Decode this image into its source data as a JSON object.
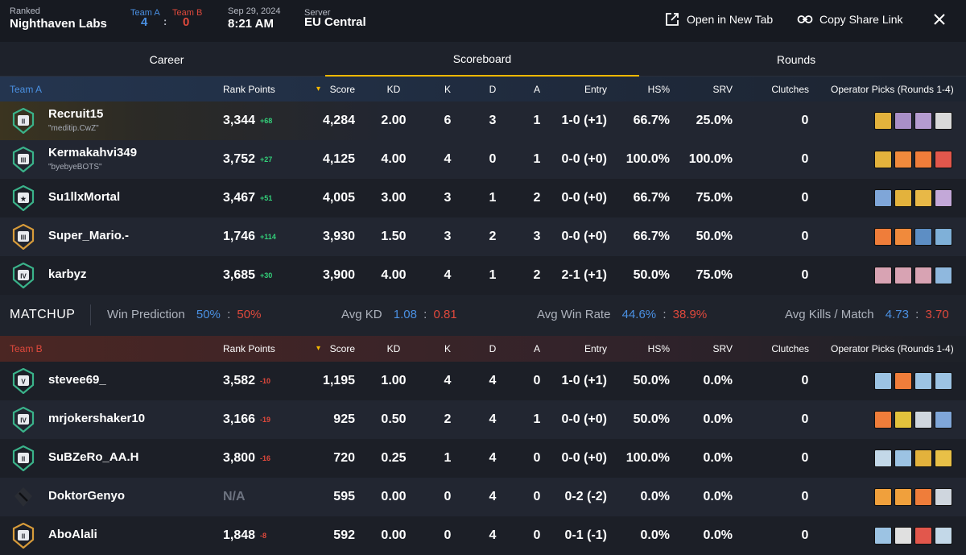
{
  "header": {
    "mode": "Ranked",
    "map": "Nighthaven Labs",
    "team_a_label": "Team A",
    "team_b_label": "Team B",
    "team_a_score": "4",
    "separator": ":",
    "team_b_score": "0",
    "date": "Sep 29, 2024",
    "time": "8:21 AM",
    "server_label": "Server",
    "server": "EU Central",
    "open_new_tab": "Open in New Tab",
    "copy_share_link": "Copy Share Link"
  },
  "tabs": [
    {
      "label": "Career",
      "active": false
    },
    {
      "label": "Scoreboard",
      "active": true
    },
    {
      "label": "Rounds",
      "active": false
    }
  ],
  "columns": {
    "rank_points": "Rank Points",
    "sort_indicator": "▾",
    "score": "Score",
    "kd": "KD",
    "k": "K",
    "d": "D",
    "a": "A",
    "entry": "Entry",
    "hs": "HS%",
    "srv": "SRV",
    "clutches": "Clutches",
    "operators": "Operator Picks (Rounds 1-4)"
  },
  "team_a": {
    "name": "Team A",
    "players": [
      {
        "name": "Recruit15",
        "sub": "\"meditip.CwZ\"",
        "rank": "II",
        "rank_color": "#3ab38a",
        "rp": "3,344",
        "delta": "+68",
        "score": "4,284",
        "kd": "2.00",
        "k": "6",
        "d": "3",
        "a": "1",
        "entry": "1-0 (+1)",
        "hs": "66.7%",
        "srv": "25.0%",
        "clutches": "0",
        "ops": [
          {
            "icon": "op-yellow",
            "color": "#e3b23c"
          },
          {
            "icon": "op-purple",
            "color": "#a98fc7"
          },
          {
            "icon": "op-purple",
            "color": "#b59cd0"
          },
          {
            "icon": "op-grey",
            "color": "#d9d9d9"
          }
        ]
      },
      {
        "name": "Kermakahvi349",
        "sub": "\"byebyeBOTS\"",
        "rank": "III",
        "rank_color": "#3ab38a",
        "rp": "3,752",
        "delta": "+27",
        "score": "4,125",
        "kd": "4.00",
        "k": "4",
        "d": "0",
        "a": "1",
        "entry": "0-0 (+0)",
        "hs": "100.0%",
        "srv": "100.0%",
        "clutches": "0",
        "ops": [
          {
            "icon": "op-yellow",
            "color": "#e3b23c"
          },
          {
            "icon": "op-orange",
            "color": "#f08a3c"
          },
          {
            "icon": "op-orange",
            "color": "#ef7d3a"
          },
          {
            "icon": "op-red",
            "color": "#e2574c"
          }
        ]
      },
      {
        "name": "Su1llxMortal",
        "sub": "",
        "rank": "★",
        "rank_color": "#3ab38a",
        "rp": "3,467",
        "delta": "+51",
        "score": "4,005",
        "kd": "3.00",
        "k": "3",
        "d": "1",
        "a": "2",
        "entry": "0-0 (+0)",
        "hs": "66.7%",
        "srv": "75.0%",
        "clutches": "0",
        "ops": [
          {
            "icon": "op-blue",
            "color": "#7fa6d8"
          },
          {
            "icon": "op-yellow",
            "color": "#e3b23c"
          },
          {
            "icon": "op-yellow",
            "color": "#e8b847"
          },
          {
            "icon": "op-purple",
            "color": "#c3a8d8"
          }
        ]
      },
      {
        "name": "Super_Mario.-",
        "sub": "",
        "rank": "III",
        "rank_color": "#d79b3a",
        "rp": "1,746",
        "delta": "+114",
        "score": "3,930",
        "kd": "1.50",
        "k": "3",
        "d": "2",
        "a": "3",
        "entry": "0-0 (+0)",
        "hs": "66.7%",
        "srv": "50.0%",
        "clutches": "0",
        "ops": [
          {
            "icon": "op-orange",
            "color": "#ef7d3a"
          },
          {
            "icon": "op-orange",
            "color": "#f08a3c"
          },
          {
            "icon": "op-blue",
            "color": "#5d8ec4"
          },
          {
            "icon": "op-blue",
            "color": "#7fb0d8"
          }
        ]
      },
      {
        "name": "karbyz",
        "sub": "",
        "rank": "IV",
        "rank_color": "#3ab38a",
        "rp": "3,685",
        "delta": "+30",
        "score": "3,900",
        "kd": "4.00",
        "k": "4",
        "d": "1",
        "a": "2",
        "entry": "2-1 (+1)",
        "hs": "50.0%",
        "srv": "75.0%",
        "clutches": "0",
        "ops": [
          {
            "icon": "op-pink",
            "color": "#d8a3b3"
          },
          {
            "icon": "op-pink",
            "color": "#d8a3b3"
          },
          {
            "icon": "op-pink",
            "color": "#d8a3b3"
          },
          {
            "icon": "op-blue",
            "color": "#8fb8de"
          }
        ]
      }
    ]
  },
  "matchup": {
    "title": "MATCHUP",
    "win_prediction_label": "Win Prediction",
    "win_prediction_a": "50%",
    "win_prediction_b": "50%",
    "avg_kd_label": "Avg KD",
    "avg_kd_a": "1.08",
    "avg_kd_b": "0.81",
    "avg_win_rate_label": "Avg Win Rate",
    "avg_win_rate_a": "44.6%",
    "avg_win_rate_b": "38.9%",
    "avg_kills_label": "Avg Kills / Match",
    "avg_kills_a": "4.73",
    "avg_kills_b": "3.70",
    "sep": ":"
  },
  "team_b": {
    "name": "Team B",
    "players": [
      {
        "name": "stevee69_",
        "sub": "",
        "rank": "V",
        "rank_color": "#3ab38a",
        "rp": "3,582",
        "delta": "-10",
        "score": "1,195",
        "kd": "1.00",
        "k": "4",
        "d": "4",
        "a": "0",
        "entry": "1-0 (+1)",
        "hs": "50.0%",
        "srv": "0.0%",
        "clutches": "0",
        "ops": [
          {
            "icon": "op-blue",
            "color": "#9cc3e3"
          },
          {
            "icon": "op-orange",
            "color": "#ef7d3a"
          },
          {
            "icon": "op-blue",
            "color": "#9cc3e3"
          },
          {
            "icon": "op-blue",
            "color": "#9cc3e3"
          }
        ]
      },
      {
        "name": "mrjokershaker10",
        "sub": "",
        "rank": "IV",
        "rank_color": "#3ab38a",
        "rp": "3,166",
        "delta": "-19",
        "score": "925",
        "kd": "0.50",
        "k": "2",
        "d": "4",
        "a": "1",
        "entry": "0-0 (+0)",
        "hs": "50.0%",
        "srv": "0.0%",
        "clutches": "0",
        "ops": [
          {
            "icon": "op-orange",
            "color": "#ef7d3a"
          },
          {
            "icon": "op-yellow",
            "color": "#e3c23c"
          },
          {
            "icon": "op-grey",
            "color": "#cfd6de"
          },
          {
            "icon": "op-blue",
            "color": "#7fa6d8"
          }
        ]
      },
      {
        "name": "SuBZeRo_AA.H",
        "sub": "",
        "rank": "II",
        "rank_color": "#3ab38a",
        "rp": "3,800",
        "delta": "-16",
        "score": "720",
        "kd": "0.25",
        "k": "1",
        "d": "4",
        "a": "0",
        "entry": "0-0 (+0)",
        "hs": "100.0%",
        "srv": "0.0%",
        "clutches": "0",
        "ops": [
          {
            "icon": "op-blue",
            "color": "#c3d8e8"
          },
          {
            "icon": "op-blue",
            "color": "#9cc3e3"
          },
          {
            "icon": "op-yellow",
            "color": "#e3b23c"
          },
          {
            "icon": "op-yellow",
            "color": "#e8c047"
          }
        ]
      },
      {
        "name": "DoktorGenyo",
        "sub": "",
        "rank": "",
        "rank_color": "#2a2d34",
        "rp": "N/A",
        "delta": "",
        "score": "595",
        "kd": "0.00",
        "k": "0",
        "d": "4",
        "a": "0",
        "entry": "0-2 (-2)",
        "hs": "0.0%",
        "srv": "0.0%",
        "clutches": "0",
        "ops": [
          {
            "icon": "op-orange",
            "color": "#f0a03c"
          },
          {
            "icon": "op-orange",
            "color": "#f0a03c"
          },
          {
            "icon": "op-orange",
            "color": "#ef7d3a"
          },
          {
            "icon": "op-grey",
            "color": "#cfd6de"
          }
        ]
      },
      {
        "name": "AboAlali",
        "sub": "",
        "rank": "II",
        "rank_color": "#d79b3a",
        "rp": "1,848",
        "delta": "-8",
        "score": "592",
        "kd": "0.00",
        "k": "0",
        "d": "4",
        "a": "0",
        "entry": "0-1 (-1)",
        "hs": "0.0%",
        "srv": "0.0%",
        "clutches": "0",
        "ops": [
          {
            "icon": "op-blue",
            "color": "#9cc3e3"
          },
          {
            "icon": "op-grey",
            "color": "#e0e0e0"
          },
          {
            "icon": "op-red",
            "color": "#e2574c"
          },
          {
            "icon": "op-blue",
            "color": "#c3d8e8"
          }
        ]
      }
    ]
  }
}
